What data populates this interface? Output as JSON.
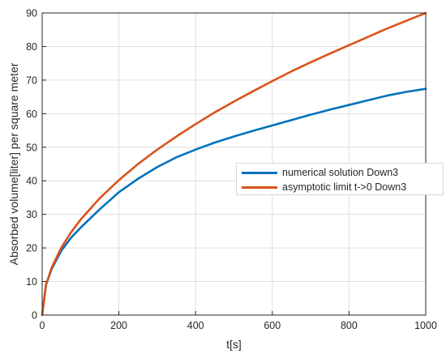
{
  "chart_data": {
    "type": "line",
    "title": "",
    "xlabel": "t[s]",
    "ylabel": "Absorbed volume[liter] per square meter",
    "xlim": [
      0,
      1000
    ],
    "ylim": [
      0,
      90
    ],
    "x_ticks": [
      "0",
      "200",
      "400",
      "600",
      "800",
      "1000"
    ],
    "y_ticks": [
      "0",
      "10",
      "20",
      "30",
      "40",
      "50",
      "60",
      "70",
      "80",
      "90"
    ],
    "grid": true,
    "legend_position": "right-middle",
    "series": [
      {
        "name": "numerical solution Down3",
        "color": "#0072BD",
        "x": [
          0,
          10,
          25,
          50,
          75,
          100,
          150,
          200,
          250,
          300,
          350,
          400,
          450,
          500,
          550,
          600,
          650,
          700,
          750,
          800,
          850,
          900,
          950,
          1000
        ],
        "y": [
          0,
          9.0,
          13.8,
          19.2,
          23.0,
          26.0,
          31.5,
          36.6,
          40.6,
          44.1,
          47.0,
          49.3,
          51.4,
          53.2,
          54.9,
          56.5,
          58.1,
          59.7,
          61.2,
          62.6,
          64.0,
          65.4,
          66.5,
          67.4
        ]
      },
      {
        "name": "asymptotic limit t->0 Down3",
        "color": "#D95319",
        "x": [
          0,
          10,
          25,
          50,
          75,
          100,
          150,
          200,
          250,
          300,
          350,
          400,
          450,
          500,
          550,
          600,
          650,
          700,
          750,
          800,
          850,
          900,
          950,
          1000
        ],
        "y": [
          0,
          9.0,
          14.2,
          20.1,
          24.6,
          28.4,
          34.8,
          40.2,
          45.0,
          49.3,
          53.2,
          56.9,
          60.4,
          63.6,
          66.7,
          69.7,
          72.6,
          75.3,
          77.9,
          80.4,
          82.9,
          85.4,
          87.7,
          90.0
        ]
      }
    ]
  }
}
